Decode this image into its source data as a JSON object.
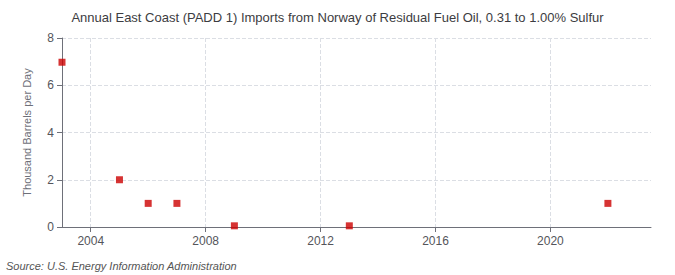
{
  "chart_data": {
    "type": "scatter",
    "title": "Annual East Coast (PADD 1) Imports from Norway of Residual Fuel Oil, 0.31 to 1.00% Sulfur",
    "ylabel": "Thousand Barrels per Day",
    "annotations": [
      "Source: U.S. Energy Information Administration"
    ],
    "x": [
      2003,
      2005,
      2006,
      2007,
      2009,
      2013,
      2022
    ],
    "values": [
      6.974,
      2.0,
      1.0,
      1.0,
      0.05,
      0.05,
      1.0
    ],
    "color": "#cc0000",
    "marker": "square",
    "xlim": [
      2003.0,
      2023.5
    ],
    "xticks": [
      2004,
      2008,
      2012,
      2016,
      2020
    ],
    "ylim": [
      0,
      8
    ],
    "yticks": [
      0,
      2,
      4,
      6,
      8
    ],
    "grid": true
  }
}
